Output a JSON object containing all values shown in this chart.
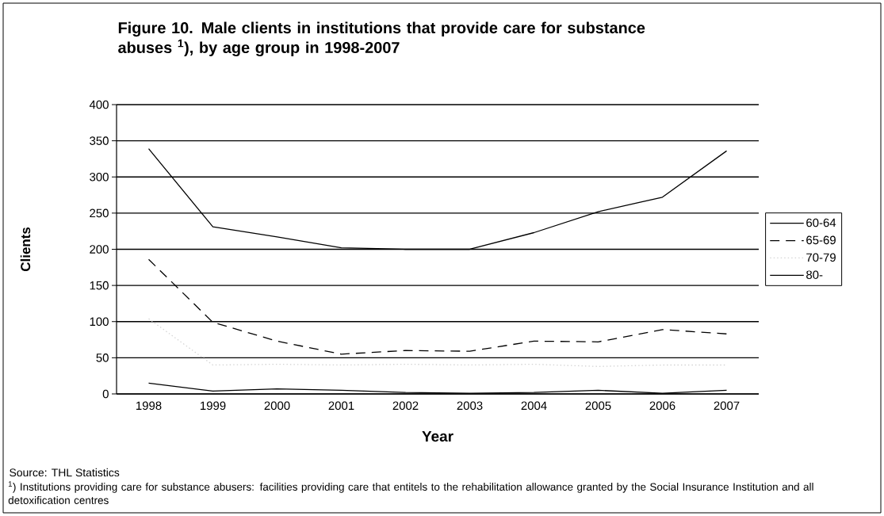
{
  "chart_data": {
    "type": "line",
    "title": "Figure 10. Male clients in institutions that provide care for substance abuses $^{1}$), by age group in 1998-2007",
    "xlabel": "Year",
    "ylabel": "Clients",
    "categories": [
      "1998",
      "1999",
      "2000",
      "2001",
      "2002",
      "2003",
      "2004",
      "2005",
      "2006",
      "2007"
    ],
    "series": [
      {
        "name": "60-64",
        "color": "#000000",
        "line_style": "solid",
        "values": [
          339,
          231,
          217,
          202,
          200,
          200,
          223,
          252,
          272,
          336
        ]
      },
      {
        "name": "65-69",
        "color": "#000000",
        "line_style": "dashed",
        "values": [
          186,
          99,
          73,
          55,
          60,
          59,
          73,
          72,
          89,
          83
        ]
      },
      {
        "name": "70-79",
        "color": "#d4d4d4",
        "line_style": "dotted",
        "values": [
          104,
          40,
          41,
          40,
          41,
          40,
          41,
          38,
          40,
          40
        ]
      },
      {
        "name": "80-",
        "color": "#000000",
        "line_style": "solid",
        "values": [
          15,
          4,
          7,
          5,
          2,
          1,
          2,
          5,
          1,
          5
        ]
      }
    ],
    "ylim": [
      0,
      400
    ],
    "yticks": [
      0,
      50,
      100,
      150,
      200,
      250,
      300,
      350,
      400
    ],
    "grid": "y",
    "legend": "right",
    "annotations": [
      "Source: THL Statistics",
      "$^{1}$) Institutions providing care for substance abusers: facilities providing care that entitels to the rehabilitation allowance granted by the Social Insurance Institution and all detoxification centres"
    ]
  }
}
